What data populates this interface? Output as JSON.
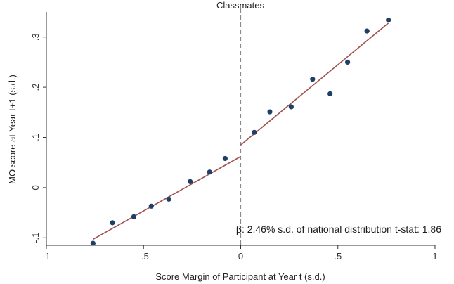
{
  "chart_data": {
    "type": "scatter",
    "title": "Classmates",
    "xlabel": "Score Margin of Participant at Year t (s.d.)",
    "ylabel": "MO score at Year t+1 (s.d.)",
    "xlim": [
      -1,
      1
    ],
    "ylim": [
      -0.115,
      0.35
    ],
    "x_ticks": [
      -1,
      -0.5,
      0,
      0.5,
      1
    ],
    "x_tick_labels": [
      "-1",
      "-.5",
      "0",
      ".5",
      "1"
    ],
    "y_ticks": [
      -0.1,
      0,
      0.1,
      0.2,
      0.3
    ],
    "y_tick_labels": [
      "-.1",
      "0",
      ".1",
      ".2",
      ".3"
    ],
    "grid": false,
    "cutoff_x": 0,
    "points": [
      {
        "x": -0.76,
        "y": -0.111
      },
      {
        "x": -0.66,
        "y": -0.07
      },
      {
        "x": -0.55,
        "y": -0.058
      },
      {
        "x": -0.46,
        "y": -0.037
      },
      {
        "x": -0.37,
        "y": -0.023
      },
      {
        "x": -0.26,
        "y": 0.012
      },
      {
        "x": -0.16,
        "y": 0.031
      },
      {
        "x": -0.08,
        "y": 0.058
      },
      {
        "x": 0.07,
        "y": 0.11
      },
      {
        "x": 0.15,
        "y": 0.151
      },
      {
        "x": 0.26,
        "y": 0.161
      },
      {
        "x": 0.37,
        "y": 0.216
      },
      {
        "x": 0.46,
        "y": 0.187
      },
      {
        "x": 0.55,
        "y": 0.25
      },
      {
        "x": 0.65,
        "y": 0.312
      },
      {
        "x": 0.76,
        "y": 0.334
      }
    ],
    "fit_lines": [
      {
        "name": "left",
        "x": [
          -0.76,
          0
        ],
        "y": [
          -0.103,
          0.062
        ]
      },
      {
        "name": "right",
        "x": [
          0,
          0.76
        ],
        "y": [
          0.085,
          0.328
        ]
      }
    ],
    "annotation": "β: 2.46% s.d. of national distribution  t-stat: 1.86",
    "colors": {
      "points": "#1f3f66",
      "fit": "#a0504f",
      "cutoff": "#8a8a8a",
      "axis": "#333333"
    }
  }
}
